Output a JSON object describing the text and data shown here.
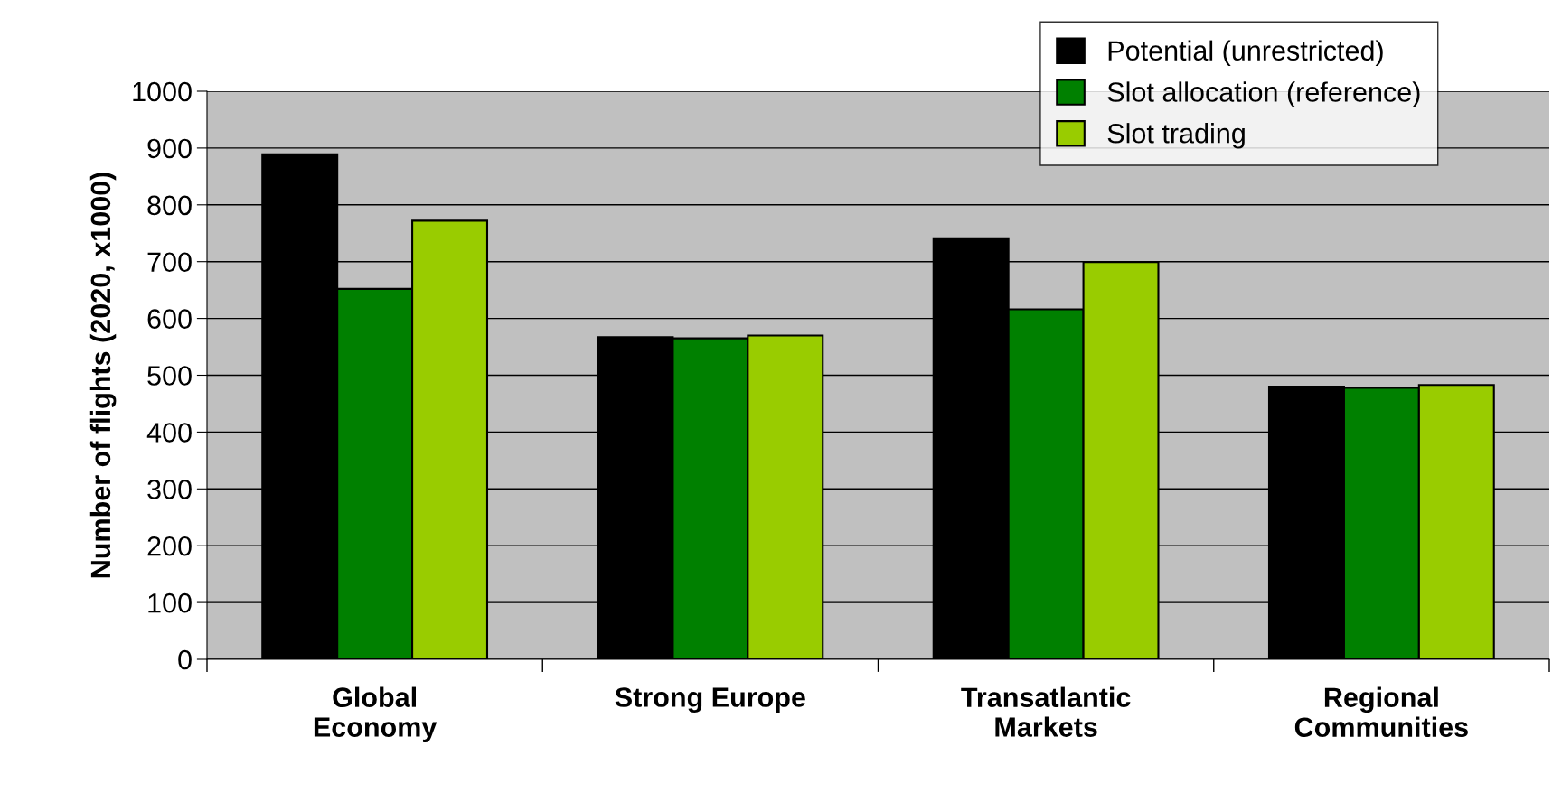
{
  "chart_data": {
    "type": "bar",
    "ylabel": "Number of flights (2020, x1000)",
    "categories": [
      "Global\nEconomy",
      "Strong Europe",
      "Transatlantic\nMarkets",
      "Regional\nCommunities"
    ],
    "series": [
      {
        "name": "Potential (unrestricted)",
        "color": "#000000",
        "values": [
          889,
          567,
          741,
          480
        ]
      },
      {
        "name": "Slot allocation (reference)",
        "color": "#008000",
        "values": [
          652,
          565,
          616,
          478
        ]
      },
      {
        "name": "Slot trading",
        "color": "#99cc00",
        "values": [
          772,
          570,
          699,
          483
        ]
      }
    ],
    "ylim": [
      0,
      1000
    ],
    "yticks": [
      0,
      100,
      200,
      300,
      400,
      500,
      600,
      700,
      800,
      900,
      1000
    ],
    "grid": "y",
    "legend": "top right"
  }
}
